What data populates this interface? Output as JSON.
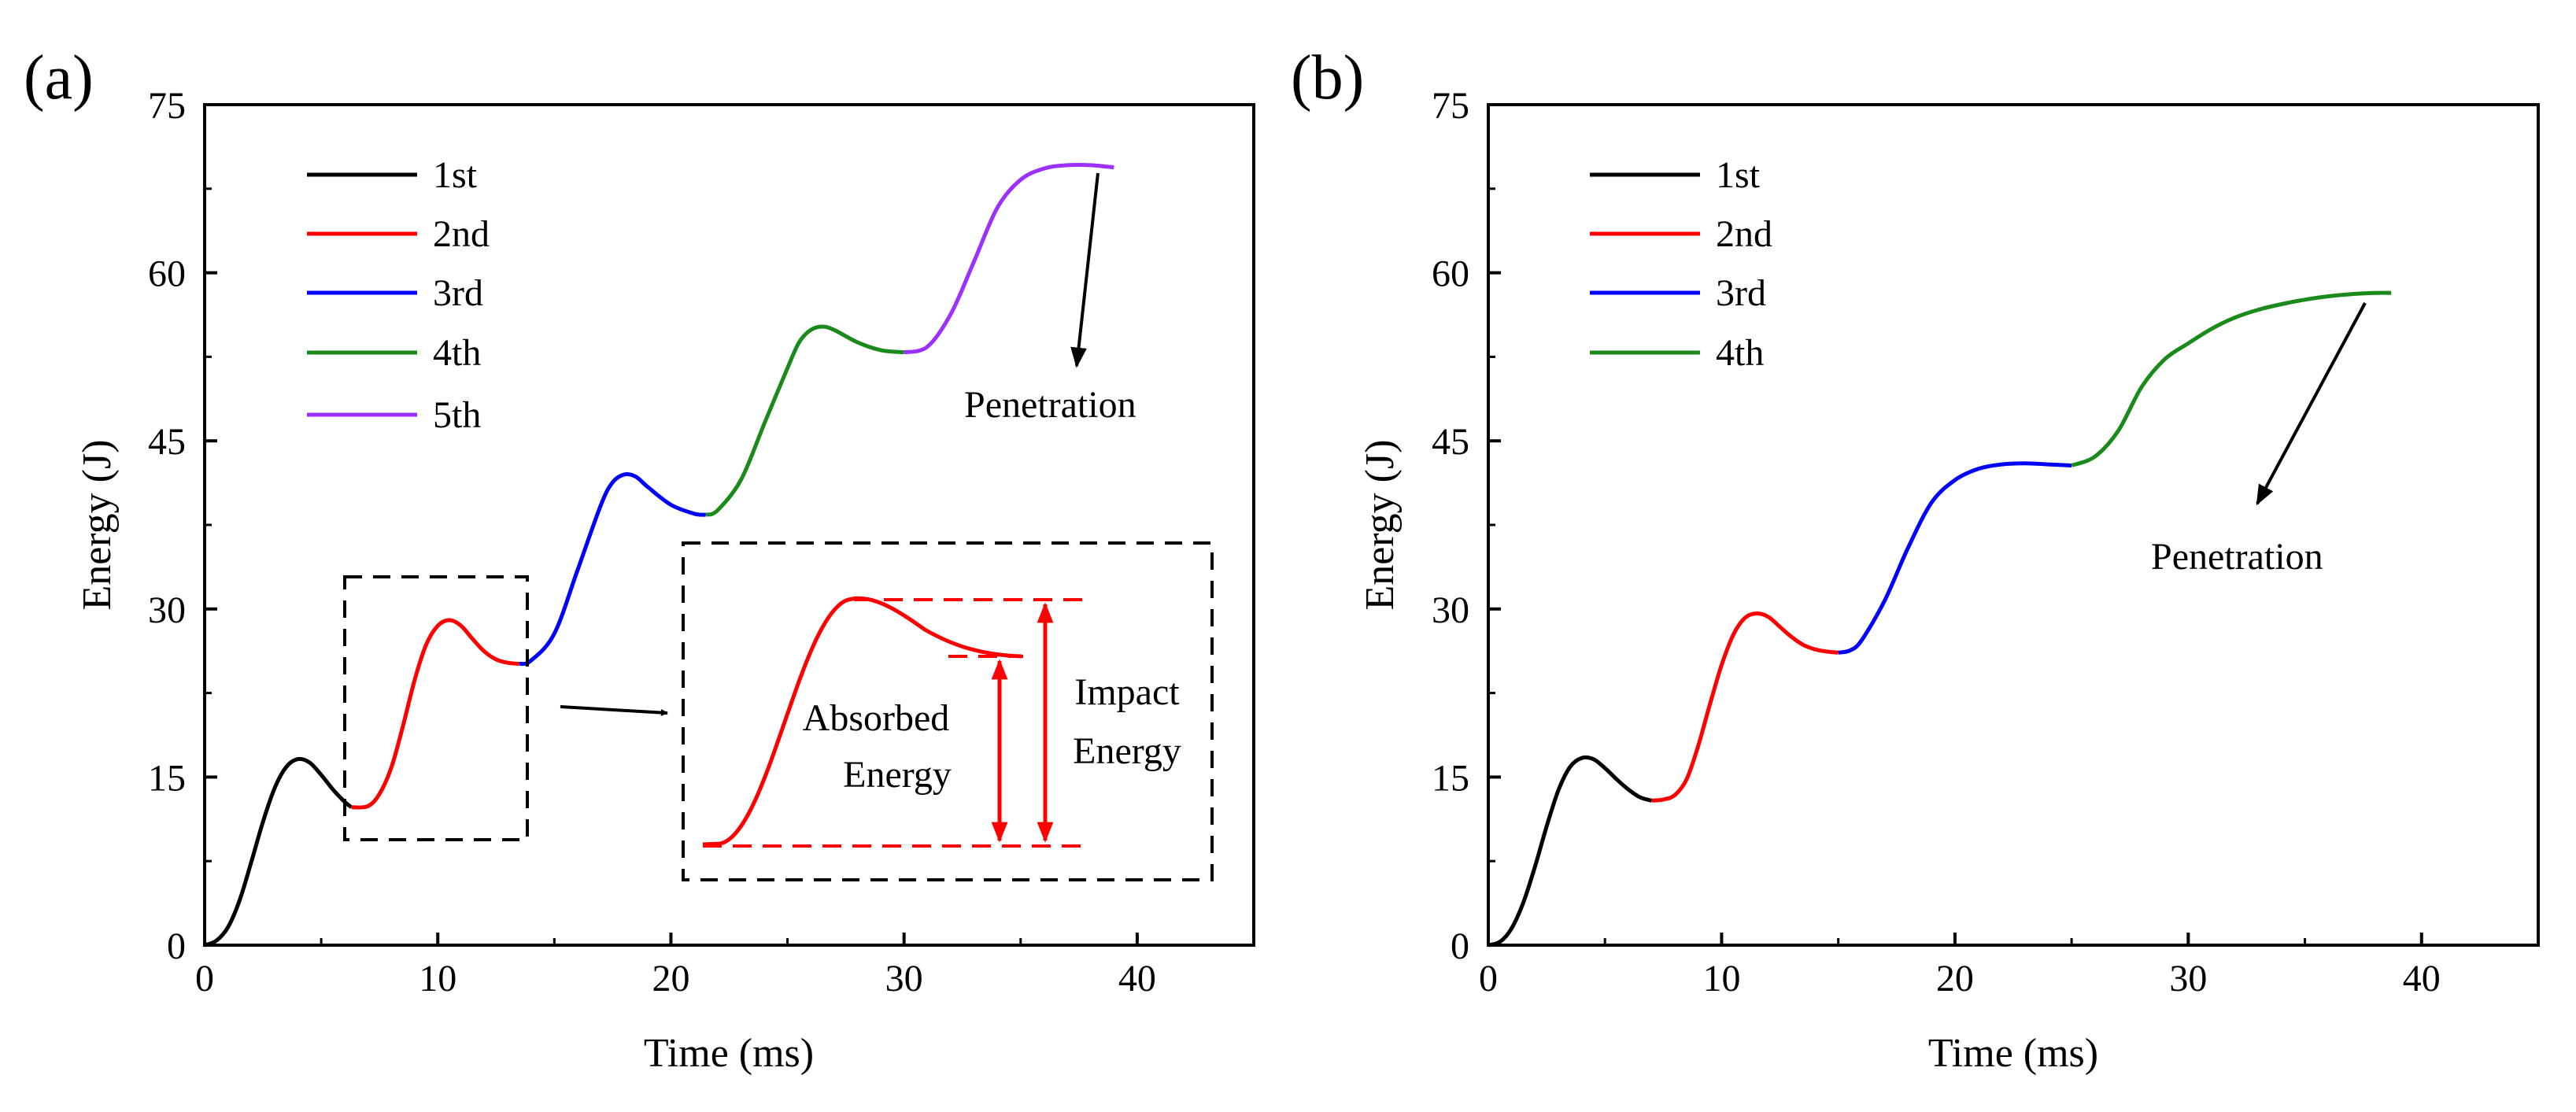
{
  "chart_data": [
    {
      "panel": "(a)",
      "type": "line",
      "xlabel": "Time (ms)",
      "ylabel": "Energy (J)",
      "xlim": [
        0,
        45
      ],
      "ylim": [
        0,
        75
      ],
      "xticks": [
        0,
        10,
        20,
        30,
        40
      ],
      "yticks": [
        0,
        15,
        30,
        45,
        60,
        75
      ],
      "legend_position": "top-left",
      "series": [
        {
          "name": "1st",
          "color": "#000000",
          "x": [
            0,
            0.5,
            1,
            1.5,
            2,
            2.5,
            3,
            3.5,
            4,
            4.5,
            5,
            5.5,
            6,
            6.3
          ],
          "y": [
            0,
            0.4,
            1.6,
            4,
            7.4,
            11,
            14,
            15.9,
            16.6,
            16.3,
            15.2,
            13.9,
            12.8,
            12.3
          ]
        },
        {
          "name": "2nd",
          "color": "#ff0000",
          "x": [
            6.3,
            7,
            7.5,
            8,
            8.5,
            9,
            9.5,
            10,
            10.5,
            11,
            11.5,
            12,
            12.5,
            13,
            13.5
          ],
          "y": [
            12.3,
            12.4,
            13.5,
            15.8,
            19.5,
            23.6,
            26.8,
            28.5,
            29,
            28.5,
            27.3,
            26.2,
            25.5,
            25.2,
            25.1
          ]
        },
        {
          "name": "3rd",
          "color": "#0000ff",
          "x": [
            13.5,
            14,
            15,
            16,
            17,
            17.5,
            18,
            18.5,
            19,
            20,
            21,
            21.5
          ],
          "y": [
            25.1,
            25.4,
            27.8,
            33.5,
            39.3,
            41.3,
            42,
            41.8,
            40.9,
            39.3,
            38.5,
            38.4
          ]
        },
        {
          "name": "4th",
          "color": "#1a8a1a",
          "x": [
            21.5,
            22,
            23,
            24,
            25,
            25.5,
            26,
            26.5,
            27,
            28,
            29,
            30
          ],
          "y": [
            38.4,
            38.8,
            41.5,
            46.5,
            51.5,
            53.8,
            54.9,
            55.2,
            54.9,
            53.8,
            53.1,
            52.9
          ]
        },
        {
          "name": "5th",
          "color": "#9b30ff",
          "x": [
            30,
            31,
            32,
            33,
            34,
            35,
            36,
            37,
            38,
            39
          ],
          "y": [
            52.9,
            53.4,
            56.3,
            61,
            65.8,
            68.3,
            69.3,
            69.6,
            69.6,
            69.4
          ]
        }
      ],
      "annotations": {
        "penetration": "Penetration",
        "absorbed_line1": "Absorbed",
        "absorbed_line2": "Energy",
        "impact_line1": "Impact",
        "impact_line2": "Energy"
      }
    },
    {
      "panel": "(b)",
      "type": "line",
      "xlabel": "Time (ms)",
      "ylabel": "Energy (J)",
      "xlim": [
        0,
        45
      ],
      "ylim": [
        0,
        75
      ],
      "xticks": [
        0,
        10,
        20,
        30,
        40
      ],
      "yticks": [
        0,
        15,
        30,
        45,
        60,
        75
      ],
      "legend_position": "top-left",
      "series": [
        {
          "name": "1st",
          "color": "#000000",
          "x": [
            0,
            0.5,
            1,
            1.5,
            2,
            2.5,
            3,
            3.5,
            4,
            4.5,
            5,
            5.5,
            6,
            6.5,
            7
          ],
          "y": [
            0,
            0.3,
            1.5,
            3.8,
            7,
            10.6,
            13.8,
            15.9,
            16.7,
            16.6,
            15.8,
            14.8,
            13.9,
            13.2,
            12.9
          ]
        },
        {
          "name": "2nd",
          "color": "#ff0000",
          "x": [
            7,
            7.5,
            8,
            8.5,
            9,
            9.5,
            10,
            10.5,
            11,
            11.5,
            12,
            12.5,
            13,
            13.5,
            14,
            14.5,
            15
          ],
          "y": [
            12.9,
            13,
            13.4,
            14.8,
            17.8,
            21.5,
            25,
            27.7,
            29.2,
            29.6,
            29.3,
            28.4,
            27.5,
            26.8,
            26.4,
            26.2,
            26.1
          ]
        },
        {
          "name": "3rd",
          "color": "#0000ff",
          "x": [
            15,
            15.5,
            16,
            17,
            18,
            19,
            20,
            21,
            22,
            23,
            24,
            25
          ],
          "y": [
            26.1,
            26.3,
            27.2,
            30.8,
            35.5,
            39.5,
            41.5,
            42.5,
            42.9,
            43,
            42.9,
            42.8
          ]
        },
        {
          "name": "4th",
          "color": "#1a8a1a",
          "x": [
            25,
            26,
            27,
            28,
            29,
            30,
            31,
            32,
            33,
            34,
            35,
            36,
            37,
            38,
            38.7
          ],
          "y": [
            42.8,
            43.6,
            45.9,
            49.8,
            52.3,
            53.7,
            55,
            56,
            56.7,
            57.2,
            57.6,
            57.9,
            58.1,
            58.2,
            58.2
          ]
        }
      ],
      "annotations": {
        "penetration": "Penetration"
      }
    }
  ]
}
